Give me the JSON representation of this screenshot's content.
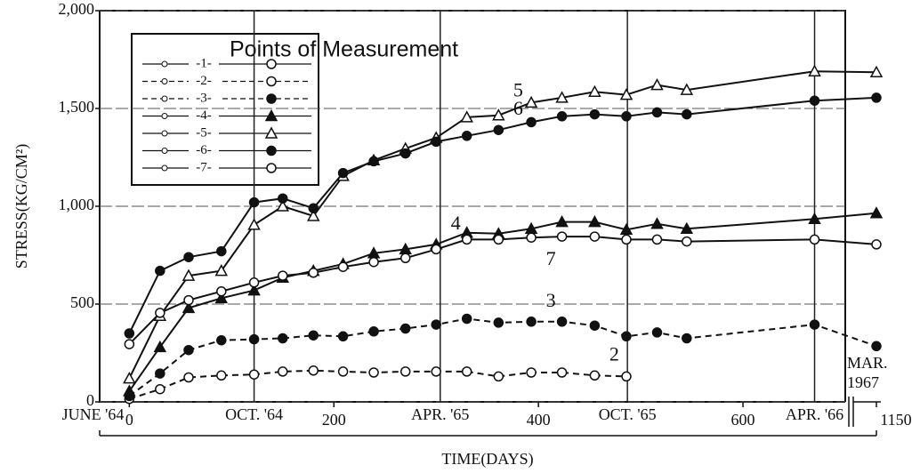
{
  "chart_data": {
    "type": "line",
    "y_label": "STRESS(KG/CM²)",
    "x_label": "TIME(DAYS)",
    "legend_title": "Points of Measurement",
    "x": [
      0,
      30,
      58,
      90,
      122,
      150,
      180,
      209,
      239,
      270,
      300,
      330,
      361,
      393,
      423,
      455,
      486,
      516,
      545,
      670,
      1150
    ],
    "series": [
      {
        "name": "-1-",
        "label": "1",
        "marker": "open-circle",
        "dash": false,
        "color": "#111111",
        "values": [
          null,
          null,
          null,
          null,
          null,
          null,
          null,
          null,
          null,
          null,
          null,
          null,
          null,
          null,
          null,
          null,
          null,
          null,
          null,
          null,
          null
        ]
      },
      {
        "name": "-2-",
        "label": "2",
        "marker": "open-circle",
        "dash": true,
        "color": "#111111",
        "values": [
          15,
          65,
          125,
          135,
          140,
          155,
          160,
          155,
          150,
          155,
          155,
          155,
          130,
          150,
          150,
          135,
          130,
          null,
          null,
          null,
          null
        ]
      },
      {
        "name": "-3-",
        "label": "3",
        "marker": "filled-circle",
        "dash": true,
        "color": "#111111",
        "values": [
          30,
          145,
          265,
          315,
          320,
          325,
          340,
          335,
          360,
          375,
          395,
          425,
          405,
          410,
          410,
          390,
          335,
          355,
          325,
          395,
          285
        ]
      },
      {
        "name": "-4-",
        "label": "4",
        "marker": "filled-triangle",
        "dash": false,
        "color": "#111111",
        "values": [
          55,
          280,
          480,
          530,
          570,
          635,
          670,
          705,
          760,
          780,
          805,
          865,
          860,
          885,
          920,
          920,
          880,
          910,
          885,
          935,
          965
        ]
      },
      {
        "name": "-5-",
        "label": "5",
        "marker": "open-triangle",
        "dash": false,
        "color": "#111111",
        "values": [
          120,
          440,
          645,
          670,
          905,
          1000,
          950,
          1155,
          1235,
          1295,
          1350,
          1455,
          1465,
          1530,
          1555,
          1585,
          1570,
          1620,
          1595,
          1690,
          1685
        ]
      },
      {
        "name": "-6-",
        "label": "6",
        "marker": "filled-circle",
        "dash": false,
        "color": "#111111",
        "values": [
          350,
          670,
          740,
          770,
          1020,
          1040,
          990,
          1170,
          1230,
          1270,
          1330,
          1360,
          1390,
          1430,
          1460,
          1470,
          1460,
          1480,
          1470,
          1540,
          1555
        ]
      },
      {
        "name": "-7-",
        "label": "7",
        "marker": "open-circle",
        "dash": false,
        "color": "#111111",
        "values": [
          295,
          455,
          520,
          565,
          610,
          645,
          660,
          690,
          715,
          735,
          780,
          830,
          830,
          840,
          845,
          845,
          830,
          830,
          820,
          830,
          805
        ]
      }
    ],
    "xlim": [
      -29,
      1155
    ],
    "x_break": [
      700,
      1130
    ],
    "xticks": [
      0,
      200,
      400,
      600,
      1150
    ],
    "date_ticks": [
      {
        "value": 0,
        "label": "JUNE '64"
      },
      {
        "value": 122,
        "label": "OCT. '64"
      },
      {
        "value": 304,
        "label": "APR. '65"
      },
      {
        "value": 487,
        "label": "OCT. '65"
      },
      {
        "value": 670,
        "label": "APR. '66"
      }
    ],
    "break_note": [
      "MAR.",
      "1967"
    ],
    "ylim": [
      0,
      2000
    ],
    "yticks": [
      {
        "value": 0,
        "label": "0"
      },
      {
        "value": 500,
        "label": "500"
      },
      {
        "value": 1000,
        "label": "1,000"
      },
      {
        "value": 1500,
        "label": "1,500"
      },
      {
        "value": 2000,
        "label": "2,000"
      }
    ],
    "grid": true
  }
}
